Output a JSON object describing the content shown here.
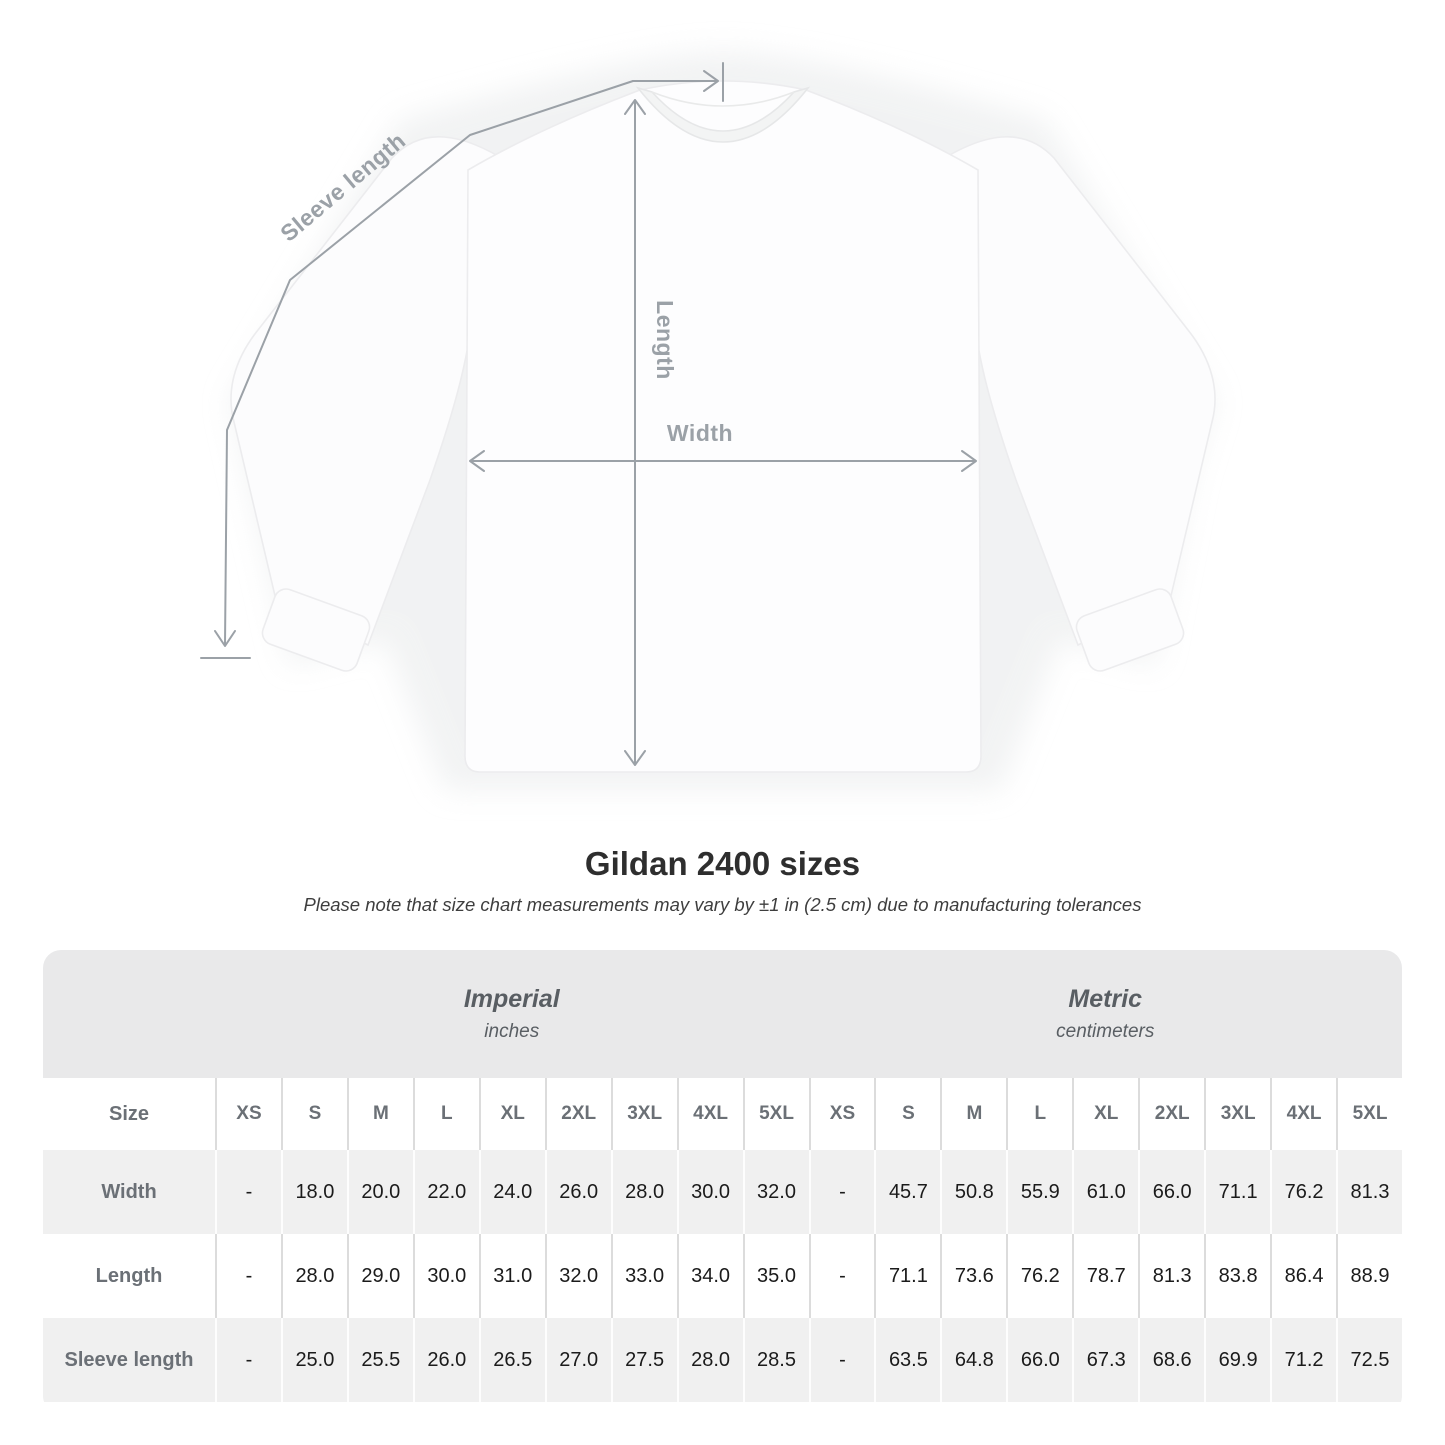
{
  "chart_data": {
    "type": "table",
    "title": "Gildan 2400 sizes",
    "note": "Please note that size chart measurements may vary by ±1 in (2.5 cm) due to manufacturing tolerances",
    "size_label": "Size",
    "sizes": [
      "XS",
      "S",
      "M",
      "L",
      "XL",
      "2XL",
      "3XL",
      "4XL",
      "5XL"
    ],
    "units": [
      {
        "name": "Imperial",
        "unit": "inches"
      },
      {
        "name": "Metric",
        "unit": "centimeters"
      }
    ],
    "rows": [
      {
        "label": "Width",
        "imperial": [
          "-",
          "18.0",
          "20.0",
          "22.0",
          "24.0",
          "26.0",
          "28.0",
          "30.0",
          "32.0"
        ],
        "metric": [
          "-",
          "45.7",
          "50.8",
          "55.9",
          "61.0",
          "66.0",
          "71.1",
          "76.2",
          "81.3"
        ]
      },
      {
        "label": "Length",
        "imperial": [
          "-",
          "28.0",
          "29.0",
          "30.0",
          "31.0",
          "32.0",
          "33.0",
          "34.0",
          "35.0"
        ],
        "metric": [
          "-",
          "71.1",
          "73.6",
          "76.2",
          "78.7",
          "81.3",
          "83.8",
          "86.4",
          "88.9"
        ]
      },
      {
        "label": "Sleeve length",
        "imperial": [
          "-",
          "25.0",
          "25.5",
          "26.0",
          "26.5",
          "27.0",
          "27.5",
          "28.0",
          "28.5"
        ],
        "metric": [
          "-",
          "63.5",
          "64.8",
          "66.0",
          "67.3",
          "68.6",
          "69.9",
          "71.2",
          "72.5"
        ]
      }
    ]
  },
  "diagram": {
    "sleeve_label": "Sleeve length",
    "length_label": "Length",
    "width_label": "Width"
  },
  "colors": {
    "measurement_gray": "#9ba1a7",
    "header_band": "#e9e9ea",
    "row_alt_gray": "#f0f0f0",
    "row_label_text": "#6b7076",
    "value_text": "#1b1b1b",
    "title_text": "#2e2e2e"
  }
}
